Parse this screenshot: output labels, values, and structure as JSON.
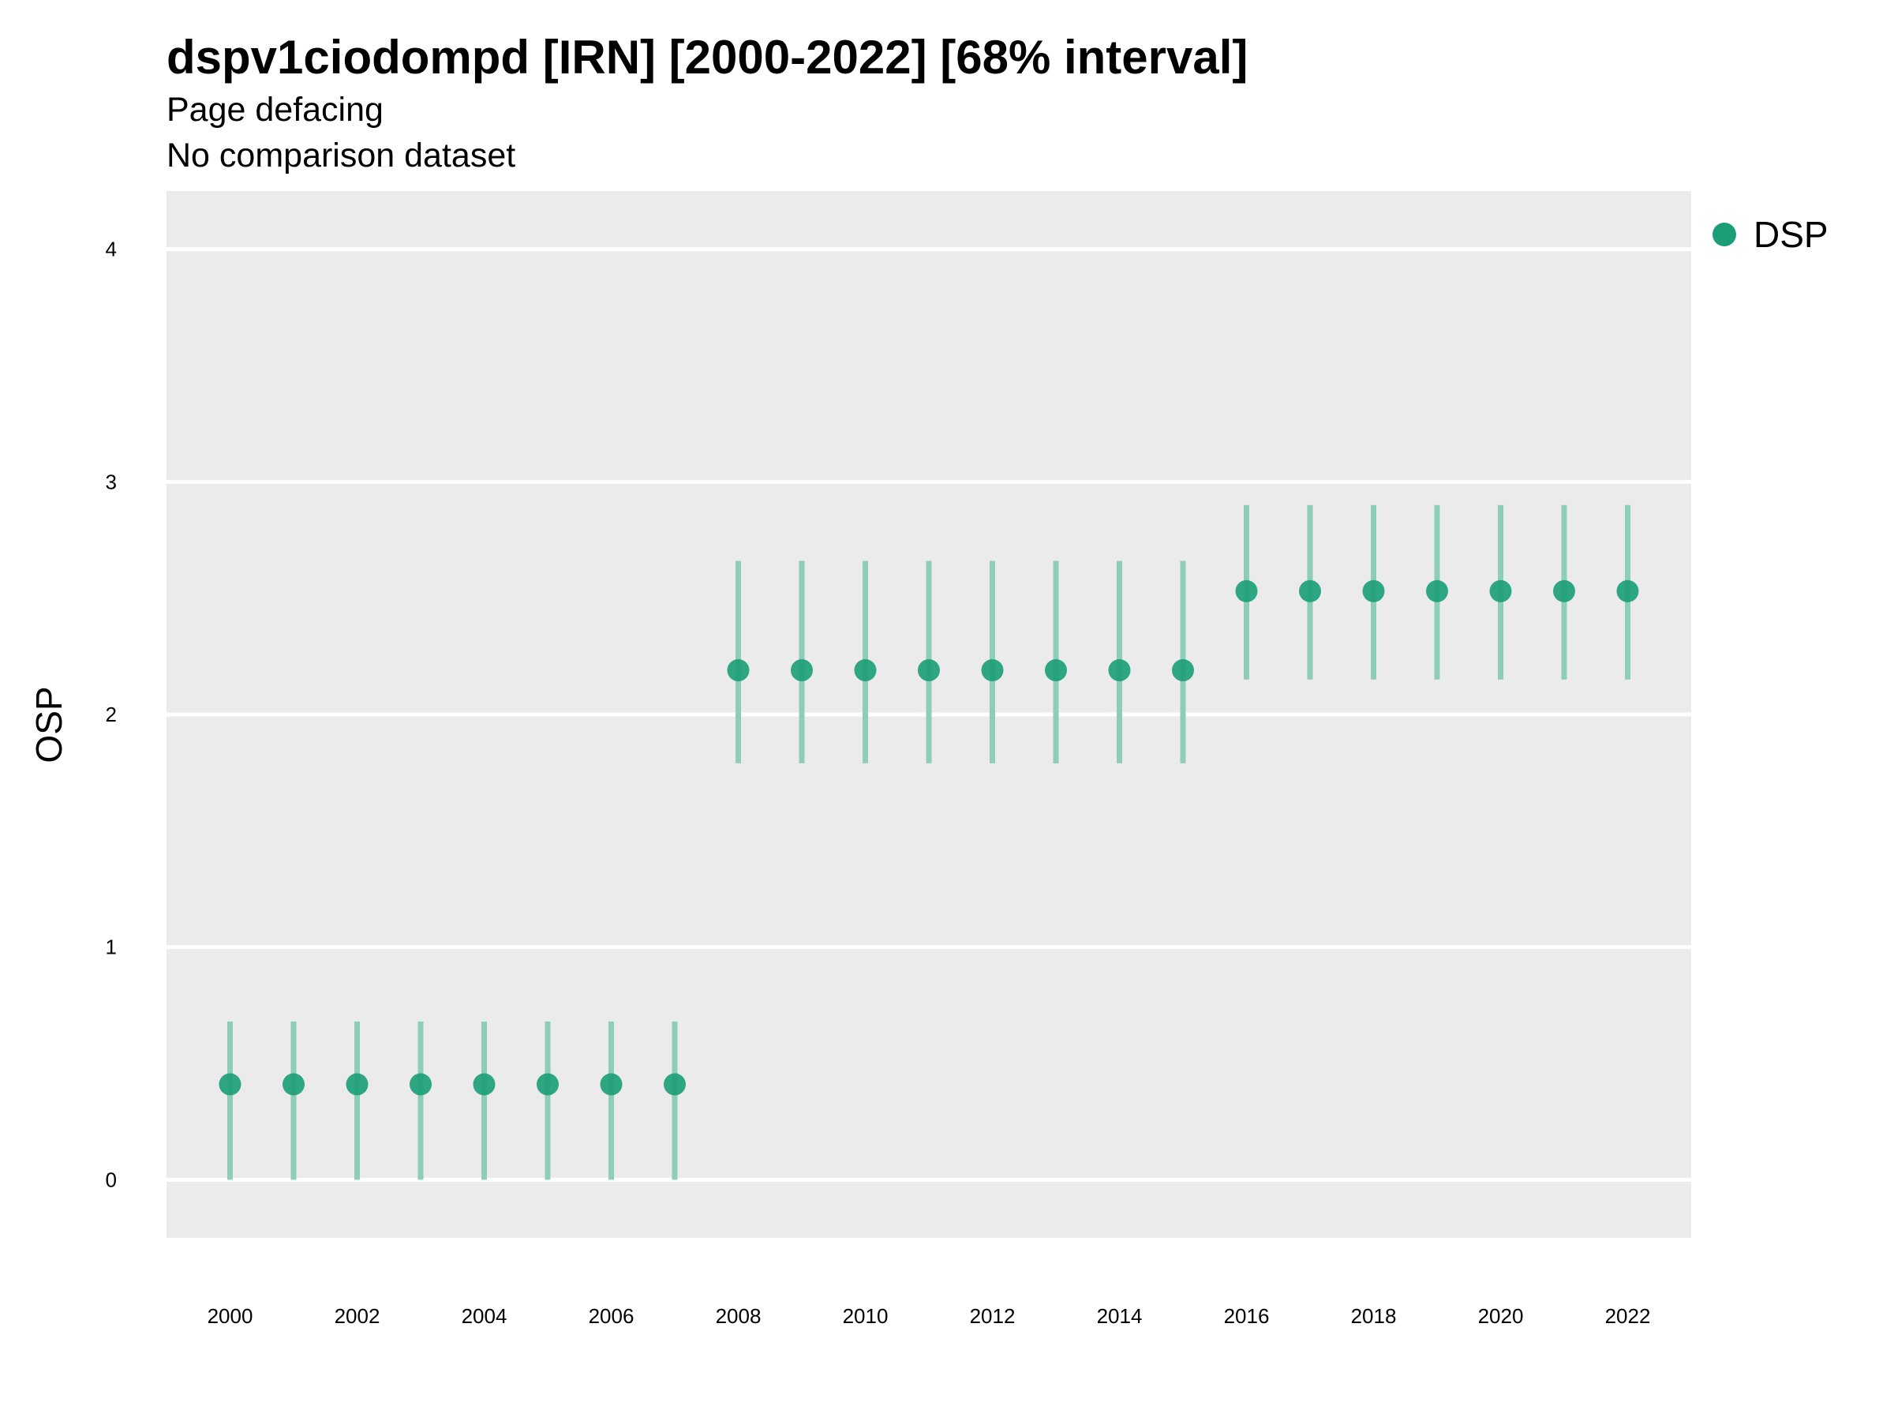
{
  "colors": {
    "point": "#1b9e77",
    "interval": "#8ecdb7",
    "panel": "#ebebeb",
    "grid": "#ffffff"
  },
  "chart_data": {
    "type": "scatter",
    "title": "dspv1ciodompd [IRN] [2000-2022] [68% interval]",
    "subtitle": "Page defacing",
    "caption": "No comparison dataset",
    "xlabel": "",
    "ylabel": "OSP",
    "xlim": [
      1999,
      2023
    ],
    "ylim": [
      -0.25,
      4.25
    ],
    "x_ticks": [
      2000,
      2002,
      2004,
      2006,
      2008,
      2010,
      2012,
      2014,
      2016,
      2018,
      2020,
      2022
    ],
    "y_ticks": [
      0,
      1,
      2,
      3,
      4
    ],
    "grid": true,
    "legend_position": "right",
    "series": [
      {
        "name": "DSP",
        "x": [
          2000,
          2001,
          2002,
          2003,
          2004,
          2005,
          2006,
          2007,
          2008,
          2009,
          2010,
          2011,
          2012,
          2013,
          2014,
          2015,
          2016,
          2017,
          2018,
          2019,
          2020,
          2021,
          2022
        ],
        "y": [
          0.41,
          0.41,
          0.41,
          0.41,
          0.41,
          0.41,
          0.41,
          0.41,
          2.19,
          2.19,
          2.19,
          2.19,
          2.19,
          2.19,
          2.19,
          2.19,
          2.53,
          2.53,
          2.53,
          2.53,
          2.53,
          2.53,
          2.53
        ],
        "lower": [
          0.0,
          0.0,
          0.0,
          0.0,
          0.0,
          0.0,
          0.0,
          0.0,
          1.79,
          1.79,
          1.79,
          1.79,
          1.79,
          1.79,
          1.79,
          1.79,
          2.15,
          2.15,
          2.15,
          2.15,
          2.15,
          2.15,
          2.15
        ],
        "upper": [
          0.68,
          0.68,
          0.68,
          0.68,
          0.68,
          0.68,
          0.68,
          0.68,
          2.66,
          2.66,
          2.66,
          2.66,
          2.66,
          2.66,
          2.66,
          2.66,
          2.9,
          2.9,
          2.9,
          2.9,
          2.9,
          2.9,
          2.9
        ]
      }
    ]
  }
}
